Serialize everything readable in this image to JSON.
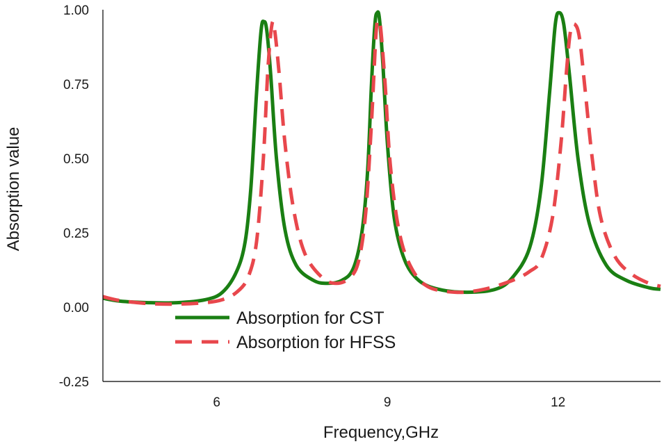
{
  "chart_data": {
    "type": "line",
    "title": "",
    "xlabel": "Frequency,GHz",
    "ylabel": "Absorption value",
    "xlim": [
      4.0,
      13.8
    ],
    "ylim": [
      -0.25,
      1.0
    ],
    "xticks": [
      6,
      9,
      12
    ],
    "xtick_labels": [
      "6",
      "9",
      "12"
    ],
    "yticks": [
      1.0,
      0.75,
      0.5,
      0.25,
      0.0,
      -0.25
    ],
    "ytick_labels": [
      "1.00",
      "0.75",
      "0.50",
      "0.25",
      "0.00",
      "-0.25"
    ],
    "grid": false,
    "legend_position": "bottom-left",
    "series": [
      {
        "name": "Absorption for CST",
        "color": "#1a7f13",
        "style": "solid",
        "points": [
          [
            4.0,
            0.03
          ],
          [
            4.3,
            0.02
          ],
          [
            4.8,
            0.015
          ],
          [
            5.3,
            0.015
          ],
          [
            5.8,
            0.025
          ],
          [
            6.1,
            0.05
          ],
          [
            6.35,
            0.12
          ],
          [
            6.5,
            0.22
          ],
          [
            6.6,
            0.4
          ],
          [
            6.7,
            0.72
          ],
          [
            6.78,
            0.93
          ],
          [
            6.83,
            0.96
          ],
          [
            6.88,
            0.93
          ],
          [
            6.95,
            0.78
          ],
          [
            7.05,
            0.5
          ],
          [
            7.2,
            0.26
          ],
          [
            7.4,
            0.14
          ],
          [
            7.7,
            0.09
          ],
          [
            7.95,
            0.08
          ],
          [
            8.2,
            0.09
          ],
          [
            8.4,
            0.13
          ],
          [
            8.55,
            0.25
          ],
          [
            8.65,
            0.45
          ],
          [
            8.72,
            0.75
          ],
          [
            8.78,
            0.95
          ],
          [
            8.82,
            0.99
          ],
          [
            8.86,
            0.97
          ],
          [
            8.92,
            0.82
          ],
          [
            9.0,
            0.55
          ],
          [
            9.12,
            0.3
          ],
          [
            9.3,
            0.16
          ],
          [
            9.55,
            0.09
          ],
          [
            9.9,
            0.06
          ],
          [
            10.4,
            0.05
          ],
          [
            10.9,
            0.06
          ],
          [
            11.2,
            0.1
          ],
          [
            11.5,
            0.2
          ],
          [
            11.7,
            0.4
          ],
          [
            11.85,
            0.72
          ],
          [
            11.95,
            0.95
          ],
          [
            12.02,
            0.99
          ],
          [
            12.1,
            0.95
          ],
          [
            12.2,
            0.78
          ],
          [
            12.35,
            0.5
          ],
          [
            12.55,
            0.28
          ],
          [
            12.85,
            0.14
          ],
          [
            13.2,
            0.09
          ],
          [
            13.6,
            0.065
          ],
          [
            13.8,
            0.06
          ]
        ]
      },
      {
        "name": "Absorption for HFSS",
        "color": "#e8474c",
        "style": "dashed",
        "points": [
          [
            4.0,
            0.035
          ],
          [
            4.3,
            0.022
          ],
          [
            4.8,
            0.012
          ],
          [
            5.3,
            0.01
          ],
          [
            5.8,
            0.015
          ],
          [
            6.1,
            0.025
          ],
          [
            6.35,
            0.05
          ],
          [
            6.55,
            0.1
          ],
          [
            6.7,
            0.22
          ],
          [
            6.82,
            0.5
          ],
          [
            6.9,
            0.8
          ],
          [
            6.97,
            0.95
          ],
          [
            7.02,
            0.93
          ],
          [
            7.1,
            0.78
          ],
          [
            7.2,
            0.55
          ],
          [
            7.35,
            0.33
          ],
          [
            7.55,
            0.18
          ],
          [
            7.85,
            0.1
          ],
          [
            8.1,
            0.08
          ],
          [
            8.35,
            0.1
          ],
          [
            8.5,
            0.16
          ],
          [
            8.62,
            0.32
          ],
          [
            8.72,
            0.62
          ],
          [
            8.8,
            0.92
          ],
          [
            8.84,
            0.96
          ],
          [
            8.88,
            0.94
          ],
          [
            8.96,
            0.75
          ],
          [
            9.05,
            0.48
          ],
          [
            9.2,
            0.26
          ],
          [
            9.4,
            0.14
          ],
          [
            9.7,
            0.07
          ],
          [
            10.2,
            0.05
          ],
          [
            10.7,
            0.06
          ],
          [
            11.2,
            0.09
          ],
          [
            11.5,
            0.12
          ],
          [
            11.7,
            0.16
          ],
          [
            11.9,
            0.3
          ],
          [
            12.05,
            0.55
          ],
          [
            12.15,
            0.8
          ],
          [
            12.22,
            0.93
          ],
          [
            12.3,
            0.95
          ],
          [
            12.38,
            0.9
          ],
          [
            12.48,
            0.72
          ],
          [
            12.6,
            0.5
          ],
          [
            12.75,
            0.3
          ],
          [
            13.0,
            0.17
          ],
          [
            13.3,
            0.11
          ],
          [
            13.6,
            0.08
          ],
          [
            13.8,
            0.07
          ]
        ]
      }
    ]
  }
}
